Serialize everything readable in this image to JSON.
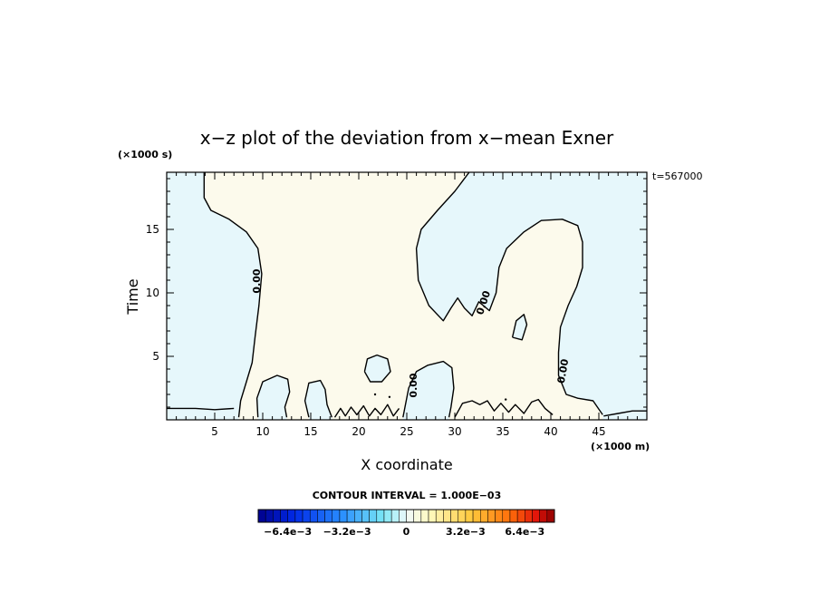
{
  "chart_data": {
    "type": "contour",
    "title": "x−z plot of the deviation from x−mean Exner",
    "xlabel": "X coordinate",
    "ylabel": "Time",
    "x_unit": "(×1000 m)",
    "y_unit": "(×1000 s)",
    "timestamp": "t=567000",
    "xlim": [
      0,
      50
    ],
    "ylim": [
      0,
      19.5
    ],
    "x_ticks": [
      5,
      10,
      15,
      20,
      25,
      30,
      35,
      40,
      45
    ],
    "y_ticks": [
      5,
      10,
      15
    ],
    "contour_levels_labeled": [
      "0.00",
      "0.00",
      "0.00",
      "0.00"
    ],
    "contour_interval": "CONTOUR INTERVAL = 1.000E−03",
    "colorbar": {
      "min": -0.008,
      "max": 0.008,
      "tick_labels": [
        "−6.4e−3",
        "−3.2e−3",
        "0",
        "3.2e−3",
        "6.4e−3"
      ],
      "tick_values": [
        -0.0064,
        -0.0032,
        0,
        0.0032,
        0.0064
      ]
    },
    "colors": {
      "negative_fill": "#e6f7fb",
      "positive_fill": "#fcfaec",
      "contour_line": "#000000"
    },
    "contours": [
      {
        "name": "left-boundary",
        "points": [
          [
            3.9,
            19.5
          ],
          [
            3.9,
            17.5
          ],
          [
            4.6,
            16.5
          ],
          [
            6.5,
            15.8
          ],
          [
            8.3,
            14.8
          ],
          [
            9.5,
            13.5
          ],
          [
            9.9,
            11.5
          ],
          [
            9.6,
            9.0
          ],
          [
            9.2,
            6.5
          ],
          [
            8.9,
            4.5
          ],
          [
            8.3,
            3.0
          ],
          [
            7.7,
            1.5
          ],
          [
            7.5,
            0.2
          ]
        ]
      },
      {
        "name": "upper-middle-boundary",
        "points": [
          [
            31.5,
            19.5
          ],
          [
            30.0,
            18.0
          ],
          [
            28.2,
            16.5
          ],
          [
            26.5,
            15.0
          ],
          [
            26.0,
            13.5
          ],
          [
            26.2,
            11.0
          ],
          [
            27.3,
            9.0
          ],
          [
            28.8,
            7.8
          ],
          [
            29.6,
            8.8
          ],
          [
            30.3,
            9.6
          ],
          [
            31.0,
            8.8
          ],
          [
            31.8,
            8.2
          ],
          [
            32.5,
            9.3
          ],
          [
            33.6,
            8.6
          ],
          [
            34.3,
            10.0
          ],
          [
            34.6,
            12.0
          ],
          [
            35.4,
            13.5
          ],
          [
            37.2,
            14.8
          ],
          [
            39.0,
            15.7
          ],
          [
            41.2,
            15.8
          ],
          [
            42.8,
            15.3
          ],
          [
            43.3,
            14.0
          ],
          [
            43.3,
            12.0
          ],
          [
            42.7,
            10.5
          ],
          [
            41.8,
            9.0
          ],
          [
            41.0,
            7.3
          ],
          [
            40.8,
            5.3
          ],
          [
            40.8,
            3.5
          ],
          [
            41.6,
            2.0
          ],
          [
            42.8,
            1.7
          ],
          [
            44.4,
            1.5
          ],
          [
            45.4,
            0.4
          ]
        ]
      },
      {
        "name": "bump-1",
        "points": [
          [
            9.5,
            0.2
          ],
          [
            9.4,
            1.7
          ],
          [
            10.0,
            3.0
          ],
          [
            11.5,
            3.5
          ],
          [
            12.6,
            3.2
          ],
          [
            12.8,
            2.2
          ],
          [
            12.3,
            1.0
          ],
          [
            12.5,
            0.2
          ]
        ]
      },
      {
        "name": "bump-2",
        "points": [
          [
            14.8,
            0.2
          ],
          [
            14.4,
            1.5
          ],
          [
            14.8,
            2.9
          ],
          [
            16.0,
            3.1
          ],
          [
            16.5,
            2.4
          ],
          [
            16.7,
            1.2
          ],
          [
            17.2,
            0.2
          ]
        ]
      },
      {
        "name": "bump-3",
        "points": [
          [
            24.6,
            0.2
          ],
          [
            25.2,
            2.5
          ],
          [
            26.0,
            3.8
          ],
          [
            27.2,
            4.3
          ],
          [
            28.8,
            4.6
          ],
          [
            29.7,
            4.1
          ],
          [
            29.9,
            2.5
          ],
          [
            29.6,
            1.0
          ],
          [
            29.4,
            0.2
          ]
        ]
      },
      {
        "name": "blob-22",
        "points": [
          [
            20.6,
            3.8
          ],
          [
            20.9,
            4.8
          ],
          [
            21.9,
            5.1
          ],
          [
            23.0,
            4.8
          ],
          [
            23.3,
            3.8
          ],
          [
            22.4,
            3.0
          ],
          [
            21.2,
            3.0
          ],
          [
            20.6,
            3.8
          ]
        ]
      },
      {
        "name": "blob-37",
        "points": [
          [
            36.0,
            6.5
          ],
          [
            36.4,
            7.8
          ],
          [
            37.2,
            8.3
          ],
          [
            37.5,
            7.5
          ],
          [
            37.0,
            6.3
          ],
          [
            36.0,
            6.5
          ]
        ]
      },
      {
        "name": "bottom-left-edge",
        "points": [
          [
            0,
            0.9
          ],
          [
            3.0,
            0.9
          ],
          [
            5.0,
            0.8
          ],
          [
            7.0,
            0.9
          ]
        ]
      },
      {
        "name": "bottom-right-edge",
        "points": [
          [
            45.5,
            0.3
          ],
          [
            47.0,
            0.5
          ],
          [
            48.5,
            0.7
          ],
          [
            50,
            0.7
          ]
        ]
      },
      {
        "name": "bottom-wiggle-a",
        "points": [
          [
            17.5,
            0.2
          ],
          [
            18.1,
            0.9
          ],
          [
            18.6,
            0.3
          ],
          [
            19.2,
            1.0
          ],
          [
            19.8,
            0.4
          ],
          [
            20.5,
            1.1
          ],
          [
            21.1,
            0.3
          ],
          [
            21.7,
            0.9
          ],
          [
            22.3,
            0.4
          ],
          [
            23.0,
            1.2
          ],
          [
            23.6,
            0.3
          ],
          [
            24.2,
            0.9
          ]
        ]
      },
      {
        "name": "bottom-wiggle-b",
        "points": [
          [
            30.0,
            0.2
          ],
          [
            30.8,
            1.3
          ],
          [
            31.8,
            1.5
          ],
          [
            32.6,
            1.2
          ],
          [
            33.4,
            1.5
          ],
          [
            34.1,
            0.7
          ],
          [
            34.8,
            1.3
          ],
          [
            35.6,
            0.6
          ],
          [
            36.3,
            1.2
          ],
          [
            37.2,
            0.5
          ],
          [
            38.0,
            1.4
          ],
          [
            38.7,
            1.6
          ],
          [
            39.4,
            0.9
          ],
          [
            40.2,
            0.4
          ]
        ]
      }
    ],
    "positive_regions": [
      "left-boundary",
      "upper-middle-boundary"
    ]
  }
}
